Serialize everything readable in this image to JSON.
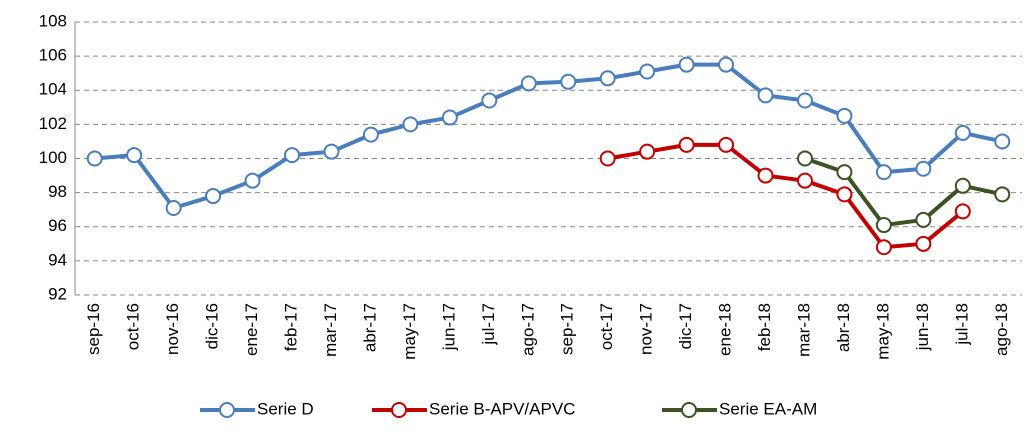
{
  "chart_data": {
    "type": "line",
    "categories": [
      "sep-16",
      "oct-16",
      "nov-16",
      "dic-16",
      "ene-17",
      "feb-17",
      "mar-17",
      "abr-17",
      "may-17",
      "jun-17",
      "jul-17",
      "ago-17",
      "sep-17",
      "oct-17",
      "nov-17",
      "dic-17",
      "ene-18",
      "feb-18",
      "mar-18",
      "abr-18",
      "may-18",
      "jun-18",
      "jul-18",
      "ago-18"
    ],
    "series": [
      {
        "name": "Serie D",
        "color": "#4a7ebb",
        "values": [
          100,
          100.2,
          97.1,
          97.8,
          98.7,
          100.2,
          100.4,
          101.4,
          102.0,
          102.4,
          103.4,
          104.4,
          104.5,
          104.7,
          105.1,
          105.5,
          105.5,
          103.7,
          103.4,
          102.5,
          99.2,
          99.4,
          101.5,
          101.0
        ]
      },
      {
        "name": "Serie B-APV/APVC",
        "color": "#c00000",
        "values": [
          null,
          null,
          null,
          null,
          null,
          null,
          null,
          null,
          null,
          null,
          null,
          null,
          null,
          100,
          100.4,
          100.8,
          100.8,
          99.0,
          98.7,
          97.9,
          94.8,
          95.0,
          96.9,
          null
        ]
      },
      {
        "name": "Serie EA-AM",
        "color": "#3b5323",
        "values": [
          null,
          null,
          null,
          null,
          null,
          null,
          null,
          null,
          null,
          null,
          null,
          null,
          null,
          null,
          null,
          null,
          null,
          null,
          100,
          99.2,
          96.1,
          96.4,
          98.4,
          97.9
        ]
      }
    ],
    "ylim": [
      92,
      108
    ],
    "yticks": [
      92,
      94,
      96,
      98,
      100,
      102,
      104,
      106,
      108
    ],
    "grid": true,
    "legend": "bottom"
  }
}
